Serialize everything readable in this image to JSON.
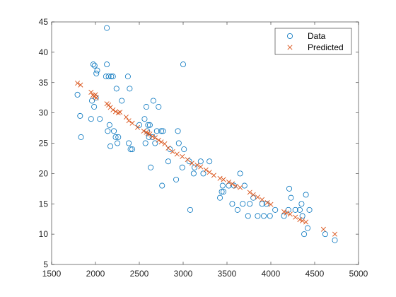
{
  "chart_data": {
    "type": "scatter",
    "title": "",
    "xlabel": "",
    "ylabel": "",
    "xlim": [
      1500,
      5000
    ],
    "ylim": [
      5,
      45
    ],
    "xticks": [
      1500,
      2000,
      2500,
      3000,
      3500,
      4000,
      4500,
      5000
    ],
    "yticks": [
      5,
      10,
      15,
      20,
      25,
      30,
      35,
      40,
      45
    ],
    "grid": false,
    "legend_position": "top-right",
    "series": [
      {
        "name": "Data",
        "marker": "circle",
        "color": "#0072BD",
        "points": [
          [
            1795,
            33
          ],
          [
            1835,
            26
          ],
          [
            1825,
            29.5
          ],
          [
            1950,
            29
          ],
          [
            1960,
            32
          ],
          [
            1975,
            38
          ],
          [
            1990,
            37.8
          ],
          [
            2005,
            32.5
          ],
          [
            1985,
            31
          ],
          [
            2010,
            36.5
          ],
          [
            2020,
            37
          ],
          [
            2050,
            29
          ],
          [
            2130,
            44
          ],
          [
            2120,
            36
          ],
          [
            2130,
            38
          ],
          [
            2150,
            36
          ],
          [
            2160,
            28
          ],
          [
            2140,
            27
          ],
          [
            2180,
            36
          ],
          [
            2200,
            36
          ],
          [
            2170,
            24.5
          ],
          [
            2210,
            27
          ],
          [
            2230,
            26
          ],
          [
            2250,
            25
          ],
          [
            2260,
            26
          ],
          [
            2240,
            34
          ],
          [
            2300,
            32
          ],
          [
            2370,
            36
          ],
          [
            2390,
            34
          ],
          [
            2380,
            25
          ],
          [
            2400,
            24
          ],
          [
            2420,
            24
          ],
          [
            2500,
            28
          ],
          [
            2560,
            29
          ],
          [
            2570,
            25
          ],
          [
            2580,
            31
          ],
          [
            2590,
            27
          ],
          [
            2600,
            28
          ],
          [
            2610,
            26
          ],
          [
            2620,
            28
          ],
          [
            2630,
            21
          ],
          [
            2650,
            26
          ],
          [
            2660,
            32
          ],
          [
            2680,
            25
          ],
          [
            2700,
            27
          ],
          [
            2720,
            31
          ],
          [
            2750,
            27
          ],
          [
            2760,
            18
          ],
          [
            2770,
            27
          ],
          [
            2830,
            22
          ],
          [
            2850,
            24
          ],
          [
            2920,
            19
          ],
          [
            2940,
            27
          ],
          [
            2950,
            25
          ],
          [
            2990,
            21
          ],
          [
            3000,
            38
          ],
          [
            3010,
            24
          ],
          [
            3070,
            22
          ],
          [
            3080,
            14
          ],
          [
            3120,
            20
          ],
          [
            3130,
            21
          ],
          [
            3200,
            22
          ],
          [
            3230,
            20
          ],
          [
            3300,
            22
          ],
          [
            3420,
            16
          ],
          [
            3440,
            17
          ],
          [
            3450,
            18
          ],
          [
            3460,
            17
          ],
          [
            3520,
            18
          ],
          [
            3560,
            15
          ],
          [
            3580,
            18
          ],
          [
            3620,
            14
          ],
          [
            3650,
            20
          ],
          [
            3680,
            15
          ],
          [
            3700,
            18
          ],
          [
            3740,
            13
          ],
          [
            3760,
            15
          ],
          [
            3800,
            16
          ],
          [
            3850,
            13
          ],
          [
            3900,
            15
          ],
          [
            3920,
            13
          ],
          [
            3950,
            15
          ],
          [
            3990,
            13
          ],
          [
            4050,
            14
          ],
          [
            4150,
            13
          ],
          [
            4200,
            14
          ],
          [
            4210,
            17.5
          ],
          [
            4230,
            16
          ],
          [
            4280,
            14
          ],
          [
            4330,
            14
          ],
          [
            4350,
            15
          ],
          [
            4360,
            13
          ],
          [
            4380,
            10
          ],
          [
            4400,
            16.5
          ],
          [
            4420,
            11
          ],
          [
            4440,
            14
          ],
          [
            4620,
            10
          ],
          [
            4730,
            9
          ]
        ]
      },
      {
        "name": "Predicted",
        "marker": "x",
        "color": "#D95319",
        "points": [
          [
            1795,
            34.9
          ],
          [
            1830,
            34.6
          ],
          [
            1950,
            33.4
          ],
          [
            1970,
            32.9
          ],
          [
            1985,
            32.7
          ],
          [
            2000,
            33.0
          ],
          [
            2010,
            32.5
          ],
          [
            2130,
            31.5
          ],
          [
            2150,
            31.3
          ],
          [
            2170,
            30.9
          ],
          [
            2200,
            30.5
          ],
          [
            2230,
            30.2
          ],
          [
            2260,
            30.0
          ],
          [
            2280,
            30.1
          ],
          [
            2350,
            29.3
          ],
          [
            2380,
            28.7
          ],
          [
            2420,
            28.3
          ],
          [
            2480,
            27.6
          ],
          [
            2550,
            27.0
          ],
          [
            2580,
            26.8
          ],
          [
            2600,
            26.6
          ],
          [
            2620,
            26.5
          ],
          [
            2650,
            26.1
          ],
          [
            2680,
            25.9
          ],
          [
            2720,
            25.5
          ],
          [
            2750,
            25.2
          ],
          [
            2790,
            24.9
          ],
          [
            2830,
            24.2
          ],
          [
            2880,
            23.6
          ],
          [
            2930,
            23.2
          ],
          [
            2990,
            22.8
          ],
          [
            3050,
            22.3
          ],
          [
            3100,
            21.7
          ],
          [
            3160,
            21.4
          ],
          [
            3200,
            21.1
          ],
          [
            3260,
            20.6
          ],
          [
            3300,
            20.2
          ],
          [
            3350,
            19.7
          ],
          [
            3420,
            19.2
          ],
          [
            3460,
            19.0
          ],
          [
            3520,
            18.6
          ],
          [
            3560,
            18.3
          ],
          [
            3600,
            17.9
          ],
          [
            3650,
            17.7
          ],
          [
            3760,
            16.9
          ],
          [
            3800,
            16.5
          ],
          [
            3850,
            16.1
          ],
          [
            3900,
            15.7
          ],
          [
            3960,
            15.2
          ],
          [
            4000,
            14.9
          ],
          [
            4150,
            13.7
          ],
          [
            4180,
            13.5
          ],
          [
            4220,
            13.3
          ],
          [
            4280,
            12.8
          ],
          [
            4330,
            12.4
          ],
          [
            4360,
            12.2
          ],
          [
            4400,
            12.0
          ],
          [
            4600,
            10.8
          ],
          [
            4730,
            10.0
          ]
        ]
      }
    ]
  }
}
